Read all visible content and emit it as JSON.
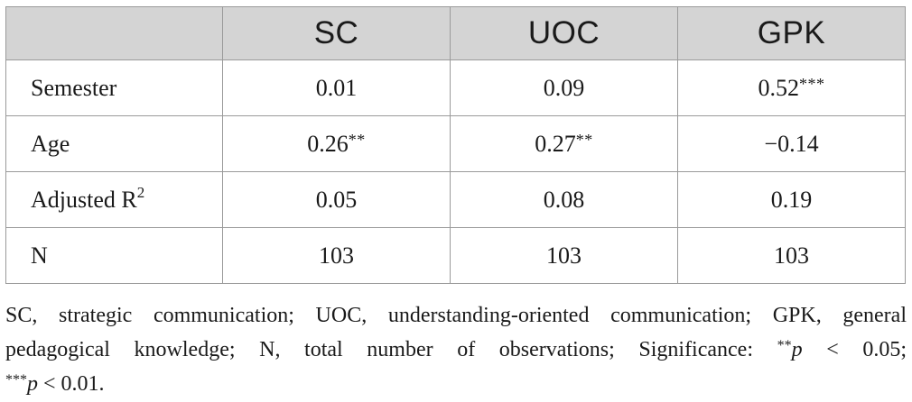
{
  "table": {
    "headers": [
      "",
      "SC",
      "UOC",
      "GPK"
    ],
    "rows": [
      {
        "label": "Semester",
        "label_sup": "",
        "cells": [
          {
            "value": "0.01",
            "stars": ""
          },
          {
            "value": "0.09",
            "stars": ""
          },
          {
            "value": "0.52",
            "stars": "***"
          }
        ]
      },
      {
        "label": "Age",
        "label_sup": "",
        "cells": [
          {
            "value": "0.26",
            "stars": "**"
          },
          {
            "value": "0.27",
            "stars": "**"
          },
          {
            "value": "−0.14",
            "stars": ""
          }
        ]
      },
      {
        "label": "Adjusted R",
        "label_sup": "2",
        "cells": [
          {
            "value": "0.05",
            "stars": ""
          },
          {
            "value": "0.08",
            "stars": ""
          },
          {
            "value": "0.19",
            "stars": ""
          }
        ]
      },
      {
        "label": "N",
        "label_sup": "",
        "cells": [
          {
            "value": "103",
            "stars": ""
          },
          {
            "value": "103",
            "stars": ""
          },
          {
            "value": "103",
            "stars": ""
          }
        ]
      }
    ]
  },
  "footnote": {
    "line1": "SC, strategic communication; UOC, understanding-oriented communication; GPK, general",
    "line2_text": "pedagogical knowledge; N, total number of observations; Significance: ",
    "sig1_stars": "**",
    "sig1_p": "p",
    "sig1_rest": " < 0.05;",
    "sig2_stars": "***",
    "sig2_p": "p",
    "sig2_rest": " < 0.01."
  }
}
